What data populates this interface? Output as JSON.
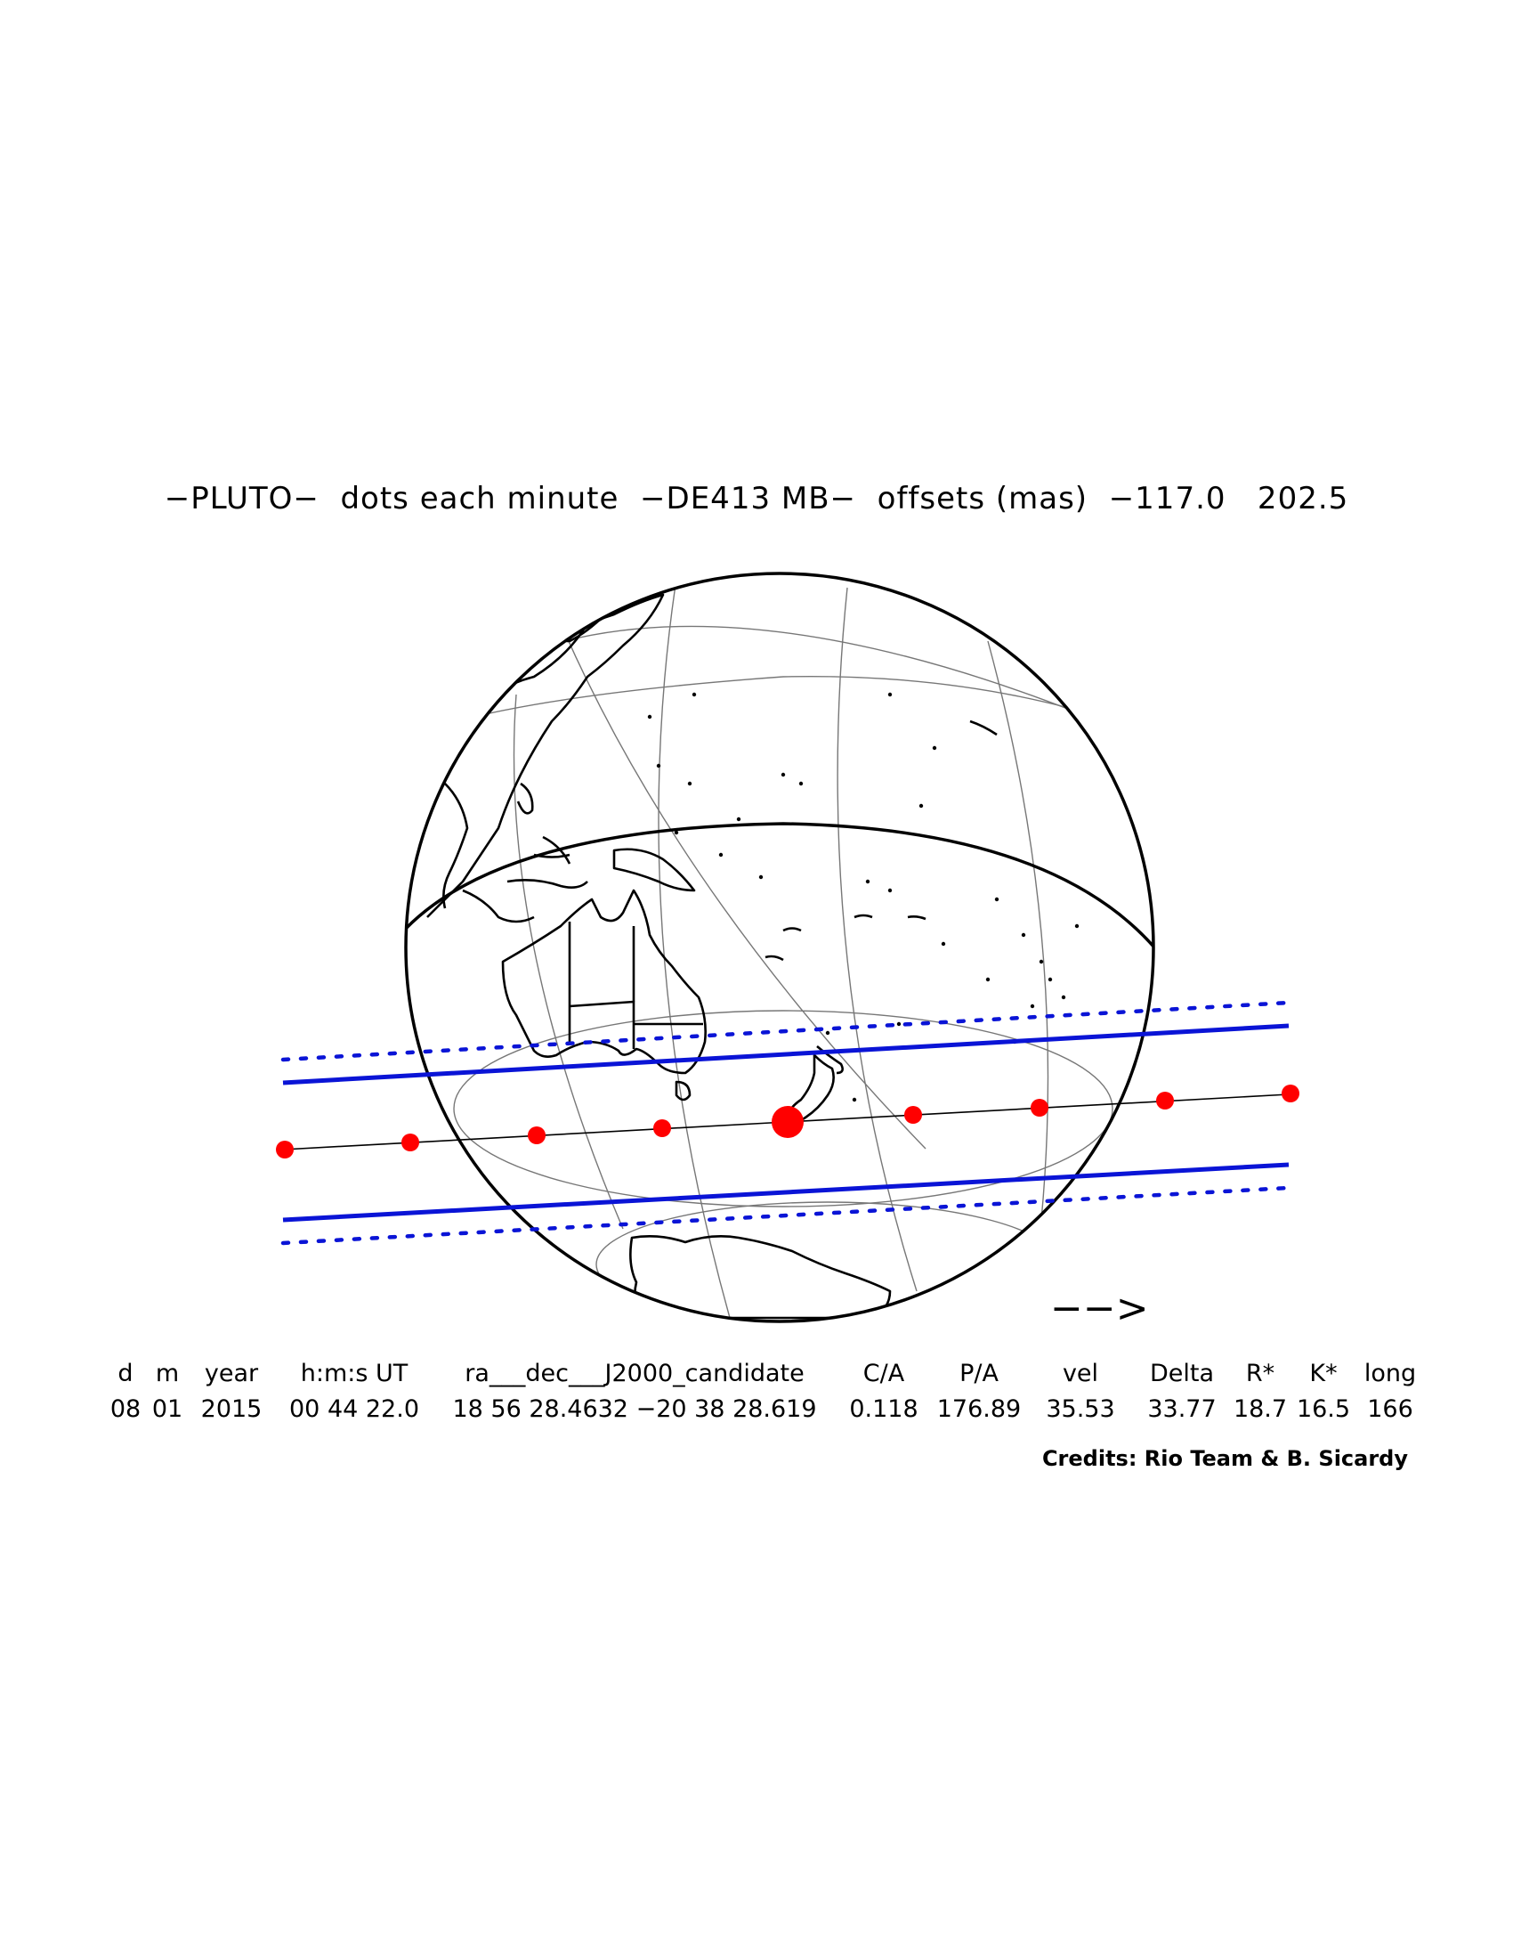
{
  "title": "−PLUTO−  dots each minute  −DE413 MB−  offsets (mas)  −117.0   202.5",
  "direction_arrow": "−−>",
  "table": {
    "headers": [
      "d",
      "m",
      "year",
      "h:m:s UT",
      "ra___dec___J2000_candidate",
      "C/A",
      "P/A",
      "vel",
      "Delta",
      "R*",
      "K*",
      "long"
    ],
    "values": [
      "08",
      "01",
      "2015",
      "00 44 22.0",
      "18 56 28.4632 −20 38 28.619",
      "0.118",
      "176.89",
      "35.53",
      "33.77",
      "18.7",
      "16.5",
      "166"
    ]
  },
  "credits": "Credits: Rio Team & B. Sicardy",
  "colors": {
    "dots": "#ff0000",
    "shadow_limits": "#0a14d6",
    "outlines": "#000000",
    "grid": "#777777"
  },
  "icons": [
    "direction-arrow-icon"
  ]
}
